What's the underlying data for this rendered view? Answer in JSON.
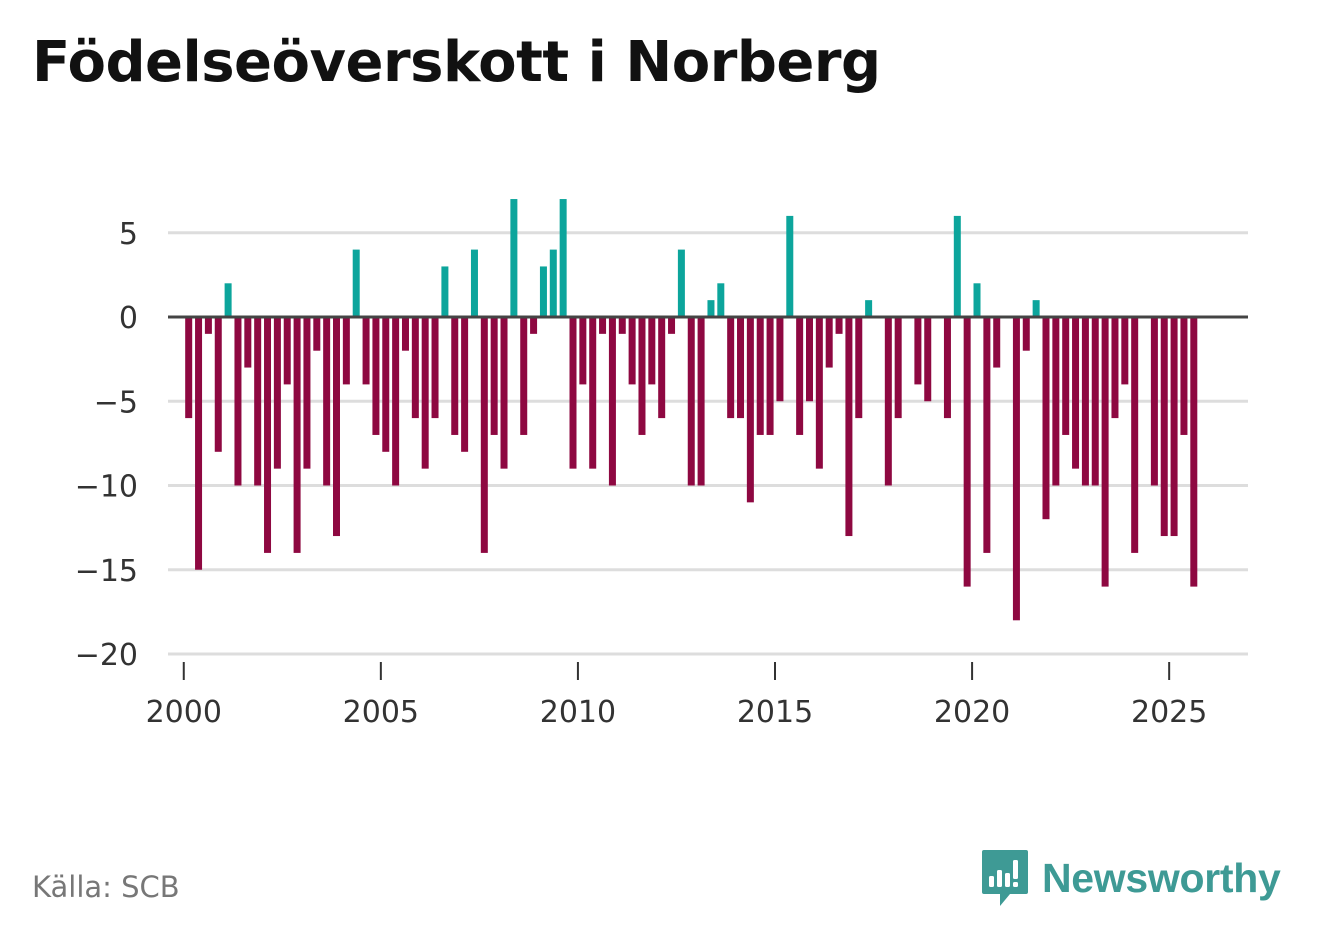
{
  "title": "Födelseöverskott i Norberg",
  "source": "Källa: SCB",
  "brand": {
    "name": "Newsworthy",
    "icon": "newsworthy-logo-icon",
    "color": "#3e9a95"
  },
  "colors": {
    "positive": "#0ca59c",
    "negative": "#8e0841",
    "zero_line": "#444444",
    "grid": "#dddddd"
  },
  "chart_data": {
    "type": "bar",
    "title": "Födelseöverskott i Norberg",
    "xlabel": "",
    "ylabel": "",
    "grid": true,
    "ylim": [
      -20,
      7
    ],
    "yticks": [
      5,
      0,
      -5,
      -10,
      -15,
      -20
    ],
    "ytick_labels": [
      "5",
      "0",
      "−5",
      "−10",
      "−15",
      "−20"
    ],
    "xlim": [
      1999.6,
      2027.0
    ],
    "xticks": [
      2000,
      2005,
      2010,
      2015,
      2020,
      2025
    ],
    "xtick_labels": [
      "2000",
      "2005",
      "2010",
      "2015",
      "2020",
      "2025"
    ],
    "period": "quarterly",
    "start": 2000.125,
    "step": 0.25,
    "values": [
      -6,
      -15,
      -1,
      -8,
      2,
      -10,
      -3,
      -10,
      -14,
      -9,
      -4,
      -14,
      -9,
      -2,
      -10,
      -13,
      -4,
      4,
      -4,
      -7,
      -8,
      -10,
      -2,
      -6,
      -9,
      -6,
      3,
      -7,
      -8,
      4,
      -14,
      -7,
      -9,
      7,
      -7,
      -1,
      3,
      4,
      7,
      -9,
      -4,
      -9,
      -1,
      -10,
      -1,
      -4,
      -7,
      -4,
      -6,
      -1,
      4,
      -10,
      -10,
      1,
      2,
      -6,
      -6,
      -11,
      -7,
      -7,
      -5,
      6,
      -7,
      -5,
      -9,
      -3,
      -1,
      -13,
      -6,
      1,
      0,
      -10,
      -6,
      0,
      -4,
      -5,
      0,
      -6,
      6,
      -16,
      2,
      -14,
      -3,
      0,
      -18,
      -2,
      1,
      -12,
      -10,
      -7,
      -9,
      -10,
      -10,
      -16,
      -6,
      -4,
      -14,
      0,
      -10,
      -13,
      -13,
      -7,
      -16
    ]
  }
}
